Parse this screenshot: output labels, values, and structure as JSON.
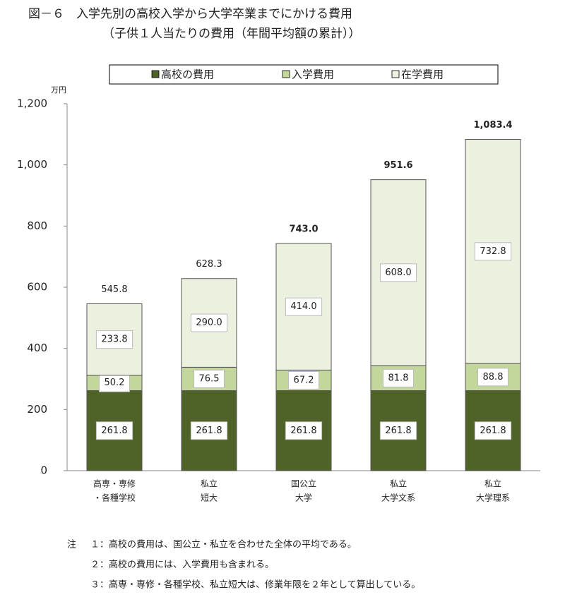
{
  "chart_data": {
    "type": "stacked-bar",
    "title": "図－６　入学先別の高校入学から大学卒業までにかける費用",
    "subtitle": "（子供１人当たりの費用（年間平均額の累計））",
    "y_unit": "万円",
    "categories": [
      [
        "高専・専修",
        "・各種学校"
      ],
      [
        "私立",
        "短大"
      ],
      [
        "国公立",
        "大学"
      ],
      [
        "私立",
        "大学文系"
      ],
      [
        "私立",
        "大学理系"
      ]
    ],
    "series": [
      {
        "name": "高校の費用",
        "color": "#4f6228",
        "values": [
          261.8,
          261.8,
          261.8,
          261.8,
          261.8
        ],
        "value_labels": [
          "261.8",
          "261.8",
          "261.8",
          "261.8",
          "261.8"
        ]
      },
      {
        "name": "入学費用",
        "color": "#c3d69b",
        "values": [
          50.2,
          76.5,
          67.2,
          81.8,
          88.8
        ],
        "value_labels": [
          "50.2",
          "76.5",
          "67.2",
          "81.8",
          "88.8"
        ]
      },
      {
        "name": "在学費用",
        "color": "#ebf1de",
        "values": [
          233.8,
          290.0,
          414.0,
          608.0,
          732.8
        ],
        "value_labels": [
          "233.8",
          "290.0",
          "414.0",
          "608.0",
          "732.8"
        ]
      }
    ],
    "totals": [
      545.8,
      628.3,
      743.0,
      951.6,
      1083.4
    ],
    "total_labels": [
      "545.8",
      "628.3",
      "743.0",
      "951.6",
      "1,083.4"
    ],
    "totals_bold": [
      false,
      false,
      true,
      true,
      true
    ],
    "ylim": [
      0,
      1200
    ],
    "yticks": [
      0,
      200,
      400,
      600,
      800,
      {
        "value": 1000,
        "label": "1,000"
      },
      {
        "value": 1200,
        "label": "1,200"
      }
    ],
    "grid": false,
    "note_label": "注",
    "notes": [
      "１：高校の費用は、国公立・私立を合わせた全体の平均である。",
      "２：高校の費用には、入学費用も含まれる。",
      "３：高専・専修・各種学校、私立短大は、修業年限を２年として算出している。"
    ]
  }
}
